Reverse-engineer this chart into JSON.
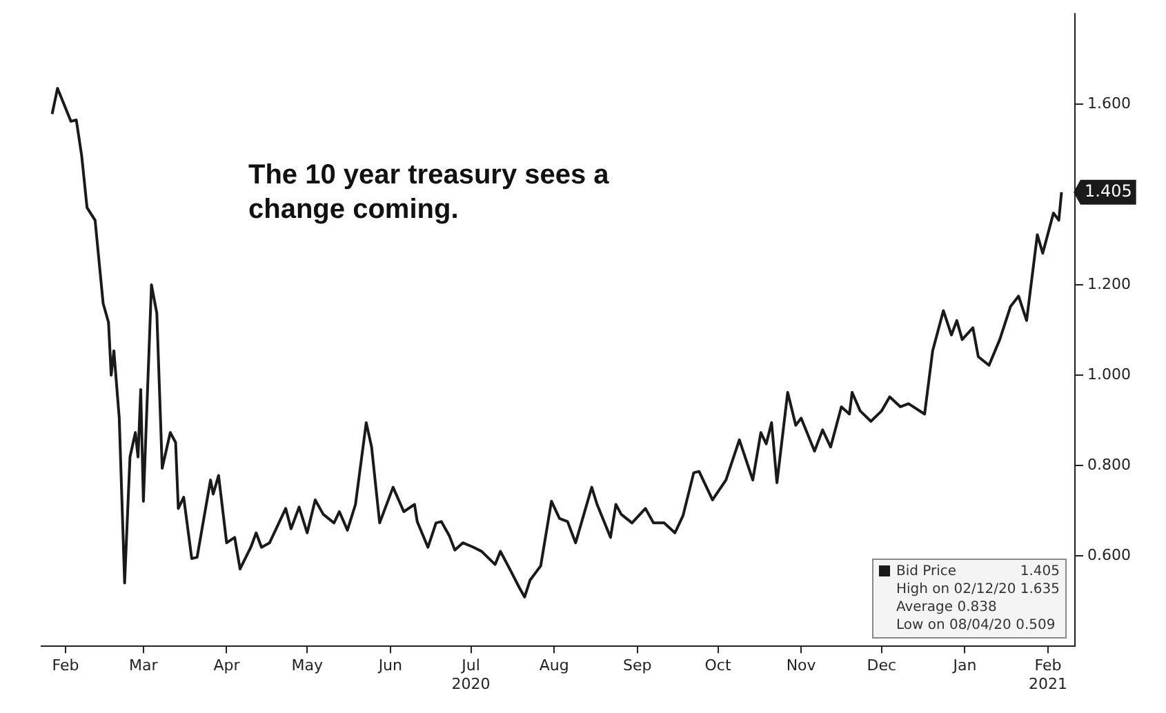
{
  "chart_data": {
    "type": "line",
    "title": "The 10 year treasury sees a change coming.",
    "x": [
      "2020-02-10",
      "2020-02-12",
      "2020-02-17",
      "2020-02-19",
      "2020-02-21",
      "2020-02-23",
      "2020-02-26",
      "2020-02-29",
      "2020-03-02",
      "2020-03-03",
      "2020-03-04",
      "2020-03-06",
      "2020-03-08",
      "2020-03-10",
      "2020-03-12",
      "2020-03-13",
      "2020-03-14",
      "2020-03-15",
      "2020-03-18",
      "2020-03-20",
      "2020-03-22",
      "2020-03-25",
      "2020-03-27",
      "2020-03-28",
      "2020-03-30",
      "2020-04-02",
      "2020-04-04",
      "2020-04-09",
      "2020-04-10",
      "2020-04-12",
      "2020-04-15",
      "2020-04-18",
      "2020-04-20",
      "2020-04-24",
      "2020-04-26",
      "2020-04-28",
      "2020-05-01",
      "2020-05-07",
      "2020-05-09",
      "2020-05-12",
      "2020-05-15",
      "2020-05-18",
      "2020-05-21",
      "2020-05-25",
      "2020-05-27",
      "2020-05-30",
      "2020-06-02",
      "2020-06-06",
      "2020-06-08",
      "2020-06-11",
      "2020-06-16",
      "2020-06-20",
      "2020-06-24",
      "2020-06-25",
      "2020-06-29",
      "2020-07-02",
      "2020-07-04",
      "2020-07-07",
      "2020-07-09",
      "2020-07-12",
      "2020-07-16",
      "2020-07-19",
      "2020-07-24",
      "2020-07-26",
      "2020-07-30",
      "2020-08-02",
      "2020-08-04",
      "2020-08-06",
      "2020-08-10",
      "2020-08-14",
      "2020-08-17",
      "2020-08-20",
      "2020-08-23",
      "2020-08-29",
      "2020-08-31",
      "2020-09-05",
      "2020-09-07",
      "2020-09-09",
      "2020-09-13",
      "2020-09-18",
      "2020-09-21",
      "2020-09-25",
      "2020-09-29",
      "2020-10-02",
      "2020-10-06",
      "2020-10-08",
      "2020-10-13",
      "2020-10-18",
      "2020-10-23",
      "2020-10-28",
      "2020-10-31",
      "2020-11-02",
      "2020-11-04",
      "2020-11-06",
      "2020-11-10",
      "2020-11-13",
      "2020-11-15",
      "2020-11-20",
      "2020-11-23",
      "2020-11-26",
      "2020-11-30",
      "2020-12-03",
      "2020-12-04",
      "2020-12-07",
      "2020-12-11",
      "2020-12-15",
      "2020-12-18",
      "2020-12-22",
      "2020-12-25",
      "2020-12-31",
      "2021-01-03",
      "2021-01-07",
      "2021-01-10",
      "2021-01-12",
      "2021-01-14",
      "2021-01-18",
      "2021-01-20",
      "2021-01-24",
      "2021-01-28",
      "2021-02-01",
      "2021-02-04",
      "2021-02-07",
      "2021-02-11",
      "2021-02-13",
      "2021-02-17",
      "2021-02-19",
      "2021-02-20"
    ],
    "series": [
      {
        "name": "Bid Price",
        "color": "#1a1a1a",
        "values": [
          1.578,
          1.635,
          1.562,
          1.565,
          1.486,
          1.371,
          1.343,
          1.159,
          1.117,
          1.0,
          1.054,
          0.905,
          0.54,
          0.819,
          0.873,
          0.819,
          0.968,
          0.721,
          1.2,
          1.137,
          0.794,
          0.873,
          0.851,
          0.705,
          0.73,
          0.594,
          0.597,
          0.768,
          0.737,
          0.778,
          0.629,
          0.641,
          0.571,
          0.619,
          0.651,
          0.619,
          0.629,
          0.705,
          0.66,
          0.708,
          0.651,
          0.724,
          0.692,
          0.673,
          0.698,
          0.657,
          0.714,
          0.895,
          0.841,
          0.673,
          0.752,
          0.698,
          0.714,
          0.676,
          0.619,
          0.673,
          0.676,
          0.644,
          0.613,
          0.629,
          0.619,
          0.61,
          0.581,
          0.61,
          0.565,
          0.53,
          0.509,
          0.546,
          0.578,
          0.721,
          0.683,
          0.676,
          0.629,
          0.752,
          0.714,
          0.641,
          0.714,
          0.692,
          0.673,
          0.705,
          0.673,
          0.673,
          0.651,
          0.689,
          0.784,
          0.787,
          0.724,
          0.768,
          0.857,
          0.768,
          0.873,
          0.848,
          0.895,
          0.762,
          0.962,
          0.889,
          0.905,
          0.832,
          0.879,
          0.841,
          0.93,
          0.914,
          0.962,
          0.921,
          0.898,
          0.921,
          0.952,
          0.93,
          0.937,
          0.914,
          1.054,
          1.143,
          1.089,
          1.121,
          1.079,
          1.105,
          1.041,
          1.022,
          1.079,
          1.152,
          1.175,
          1.121,
          1.311,
          1.27,
          1.359,
          1.343,
          1.405
        ],
        "value_labels": [
          null,
          null,
          null,
          null,
          null,
          null,
          null,
          null,
          null,
          null,
          null,
          null,
          null,
          null,
          null,
          null,
          null,
          null,
          null,
          null,
          null,
          null,
          null,
          null,
          null,
          null,
          null,
          null,
          null,
          null,
          null,
          null,
          null,
          null,
          null,
          null,
          null,
          null,
          null,
          null,
          null,
          null,
          null,
          null,
          null,
          null,
          null,
          null,
          null,
          null,
          null,
          null,
          null,
          null,
          null,
          null,
          null,
          null,
          null,
          null,
          null,
          null,
          null,
          null,
          null,
          null,
          null,
          null,
          null,
          null,
          null,
          null,
          null,
          null,
          null,
          null,
          null,
          null,
          null,
          null,
          null,
          null,
          null,
          null,
          null,
          null,
          null,
          null,
          null,
          null,
          null,
          null,
          null,
          null,
          null,
          null,
          null,
          null,
          null,
          null,
          null,
          null,
          null,
          null,
          null,
          null,
          null,
          null,
          null,
          null,
          null,
          null,
          null,
          null,
          null,
          null,
          null,
          null,
          null,
          null,
          null,
          null,
          null,
          null,
          null,
          null,
          "1.405"
        ]
      }
    ],
    "xlim": [
      "2020-02-06",
      "2021-02-25"
    ],
    "xticks": [
      {
        "value": "2020-02-15",
        "label": "Feb"
      },
      {
        "value": "2020-03-15",
        "label": "Mar"
      },
      {
        "value": "2020-04-15",
        "label": "Apr"
      },
      {
        "value": "2020-05-15",
        "label": "May"
      },
      {
        "value": "2020-06-15",
        "label": "Jun"
      },
      {
        "value": "2020-07-15",
        "label": "Jul\n2020"
      },
      {
        "value": "2020-08-15",
        "label": "Aug"
      },
      {
        "value": "2020-09-15",
        "label": "Sep"
      },
      {
        "value": "2020-10-15",
        "label": "Oct"
      },
      {
        "value": "2020-11-15",
        "label": "Nov"
      },
      {
        "value": "2020-12-15",
        "label": "Dec"
      },
      {
        "value": "2021-01-15",
        "label": "Jan"
      },
      {
        "value": "2021-02-15",
        "label": "Feb\n2021"
      }
    ],
    "ylim": [
      0.4,
      1.8
    ],
    "yticks": [
      {
        "value": 0.6,
        "label": "0.600"
      },
      {
        "value": 0.8,
        "label": "0.800"
      },
      {
        "value": 1.0,
        "label": "1.000"
      },
      {
        "value": 1.2,
        "label": "1.200"
      },
      {
        "value": 1.4,
        "label": null
      },
      {
        "value": 1.6,
        "label": "1.600"
      }
    ],
    "annotations": [
      "High on 02/12/20 1.635",
      "Average 0.838",
      "Low on 08/04/20 0.509"
    ],
    "legend": "bottom right",
    "marker": "none",
    "line_style": "solid",
    "grid": false
  }
}
